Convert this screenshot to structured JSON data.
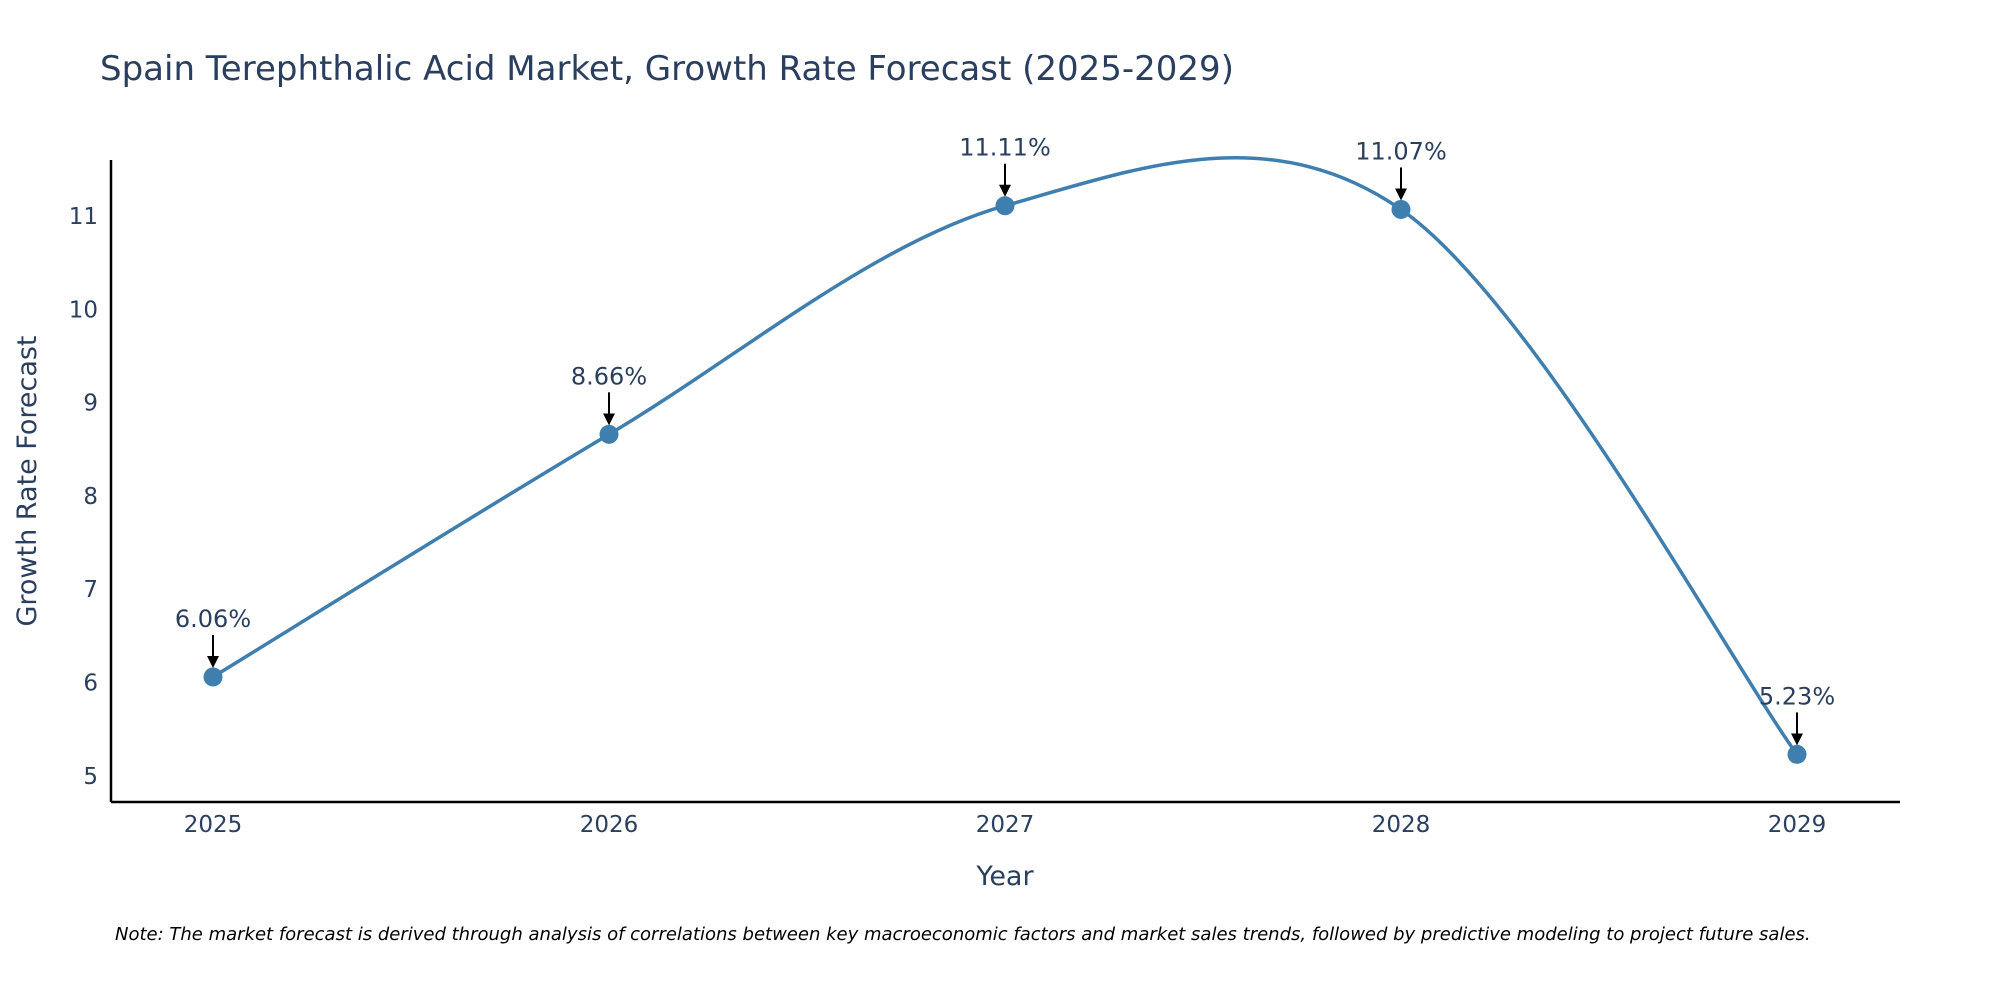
{
  "chart_data": {
    "type": "line",
    "title": "Spain Terephthalic Acid Market, Growth Rate Forecast (2025-2029)",
    "xlabel": "Year",
    "ylabel": "Growth Rate Forecast",
    "categories": [
      "2025",
      "2026",
      "2027",
      "2028",
      "2029"
    ],
    "series": [
      {
        "name": "Growth Rate Forecast",
        "values": [
          6.06,
          8.66,
          11.11,
          11.07,
          5.23
        ],
        "labels": [
          "6.06%",
          "8.66%",
          "11.11%",
          "11.07%",
          "5.23%"
        ]
      }
    ],
    "yticks": [
      "5",
      "6",
      "7",
      "8",
      "9",
      "10",
      "11"
    ],
    "ylim": [
      4.72,
      11.6
    ],
    "grid": false,
    "line_shape": "spline",
    "colors": {
      "line": "#3f7fb0",
      "marker": "#3f7fb0",
      "text": "#2a3f5f",
      "arrow": "#000000",
      "axis": "#000000"
    },
    "note": "Note: The market forecast is derived through analysis of correlations between key macroeconomic factors and market sales trends, followed by predictive modeling to project future sales."
  }
}
